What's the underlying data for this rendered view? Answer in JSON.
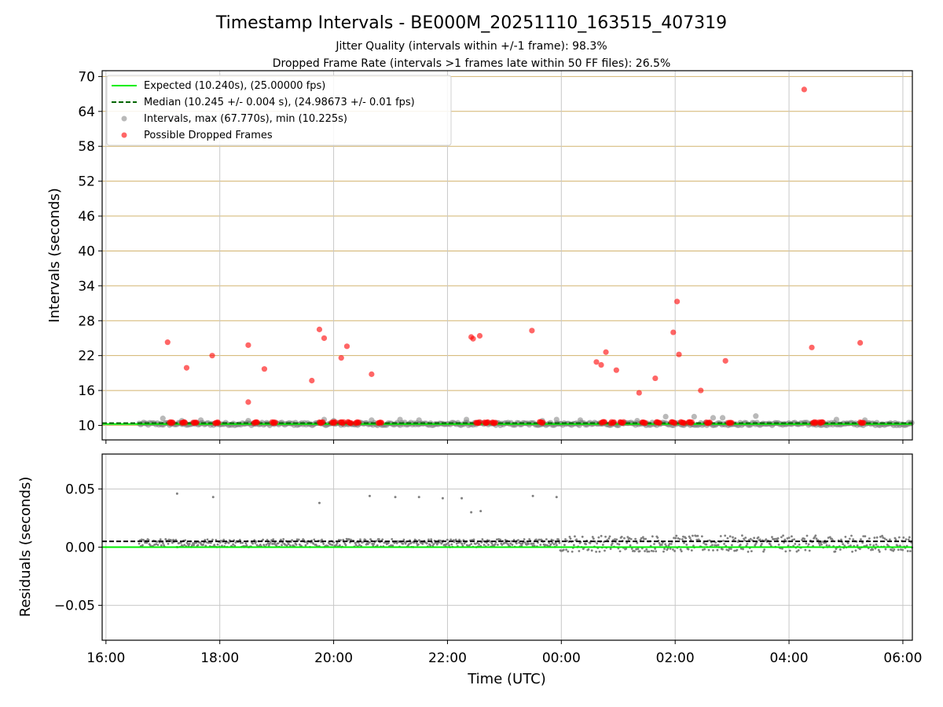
{
  "colors": {
    "expected": "#00ee00",
    "median": "#006400",
    "intervals": "#808080",
    "dropped": "#ff0000",
    "hgrid_top": "#d2b36e",
    "grid": "#c8c8c8"
  },
  "chart_data": [
    {
      "type": "scatter",
      "title": "Timestamp Intervals - BE000M_20251110_163515_407319",
      "subtitle_lines": [
        "Jitter Quality (intervals within +/-1 frame): 98.3%",
        "Dropped Frame Rate (intervals >1 frames late within 50 FF files): 26.5%"
      ],
      "ylabel": "Intervals (seconds)",
      "ylim": [
        7.5,
        71
      ],
      "yticks": [
        "10",
        "16",
        "22",
        "28",
        "34",
        "40",
        "46",
        "52",
        "58",
        "64",
        "70"
      ],
      "xlim": [
        "15:56",
        "06:10"
      ],
      "legend_position": "top-left",
      "legend": [
        "Expected (10.240s), (25.00000 fps)",
        "Median (10.245 +/- 0.004 s), (24.98673 +/- 0.01 fps)",
        "Intervals, max (67.770s), min (10.225s)",
        "Possible Dropped Frames"
      ],
      "expected_value": 10.24,
      "median_value": 10.245,
      "interval_range": [
        "16:35",
        "06:10"
      ],
      "intervals_elevated": [
        [
          "17:00",
          11.2
        ],
        [
          "17:20",
          10.8
        ],
        [
          "17:40",
          10.9
        ],
        [
          "18:30",
          10.8
        ],
        [
          "19:50",
          11.0
        ],
        [
          "20:00",
          10.8
        ],
        [
          "20:40",
          10.9
        ],
        [
          "21:10",
          11.0
        ],
        [
          "21:30",
          10.9
        ],
        [
          "22:20",
          11.0
        ],
        [
          "23:40",
          10.8
        ],
        [
          "23:55",
          11.0
        ],
        [
          "00:20",
          10.9
        ],
        [
          "01:20",
          10.8
        ],
        [
          "01:50",
          11.5
        ],
        [
          "02:20",
          11.5
        ],
        [
          "02:40",
          11.3
        ],
        [
          "02:50",
          11.3
        ],
        [
          "03:25",
          11.6
        ],
        [
          "04:50",
          11.0
        ],
        [
          "05:20",
          10.9
        ]
      ],
      "dropped_frames": [
        [
          "17:05",
          24.3
        ],
        [
          "17:25",
          19.9
        ],
        [
          "17:52",
          22.0
        ],
        [
          "18:30",
          23.8
        ],
        [
          "18:30",
          14.0
        ],
        [
          "18:47",
          19.7
        ],
        [
          "19:37",
          17.7
        ],
        [
          "19:45",
          26.5
        ],
        [
          "19:50",
          25.0
        ],
        [
          "20:08",
          21.6
        ],
        [
          "20:14",
          23.6
        ],
        [
          "20:40",
          18.8
        ],
        [
          "22:25",
          25.2
        ],
        [
          "22:27",
          24.9
        ],
        [
          "22:34",
          25.4
        ],
        [
          "23:29",
          26.3
        ],
        [
          "00:37",
          20.9
        ],
        [
          "00:42",
          20.4
        ],
        [
          "00:47",
          22.6
        ],
        [
          "00:58",
          19.5
        ],
        [
          "01:22",
          15.6
        ],
        [
          "01:39",
          18.1
        ],
        [
          "01:58",
          26.0
        ],
        [
          "02:02",
          31.3
        ],
        [
          "02:04",
          22.2
        ],
        [
          "02:27",
          16.0
        ],
        [
          "02:53",
          21.1
        ],
        [
          "04:16",
          67.77
        ],
        [
          "04:24",
          23.4
        ],
        [
          "05:15",
          24.2
        ]
      ],
      "dropped_clusters_near_expected": [
        "17:07",
        "17:20",
        "17:32",
        "17:55",
        "18:36",
        "18:55",
        "19:45",
        "19:58",
        "20:07",
        "20:15",
        "20:23",
        "20:47",
        "22:30",
        "22:39",
        "22:47",
        "23:37",
        "00:42",
        "00:52",
        "01:02",
        "01:25",
        "01:40",
        "01:56",
        "02:06",
        "02:14",
        "02:33",
        "02:56",
        "04:25",
        "04:32",
        "05:15"
      ]
    },
    {
      "type": "scatter",
      "ylabel": "Residuals (seconds)",
      "xlabel": "Time (UTC)",
      "ylim": [
        -0.08,
        0.08
      ],
      "yticks": [
        "−0.05",
        "0.00",
        "0.05"
      ],
      "xticks": [
        "16:00",
        "18:00",
        "20:00",
        "22:00",
        "00:00",
        "02:00",
        "04:00",
        "06:00"
      ],
      "expected_line": 0.0,
      "median_line": 0.005,
      "residual_outliers": [
        [
          "17:15",
          0.046
        ],
        [
          "17:53",
          0.043
        ],
        [
          "19:45",
          0.038
        ],
        [
          "20:38",
          0.044
        ],
        [
          "21:05",
          0.043
        ],
        [
          "21:30",
          0.043
        ],
        [
          "21:55",
          0.042
        ],
        [
          "22:15",
          0.042
        ],
        [
          "22:25",
          0.03
        ],
        [
          "22:35",
          0.031
        ],
        [
          "23:30",
          0.044
        ],
        [
          "23:55",
          0.043
        ]
      ],
      "residual_bands": [
        {
          "from": "16:35",
          "to": "23:58",
          "upper": 0.007,
          "lower": 0.0
        },
        {
          "from": "23:58",
          "to": "06:10",
          "upper": 0.01,
          "lower": -0.004
        }
      ]
    }
  ]
}
